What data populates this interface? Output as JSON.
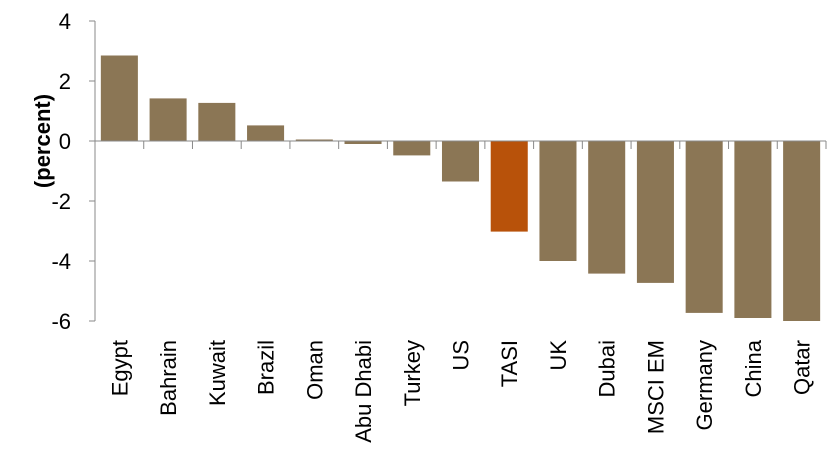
{
  "chart_data": {
    "type": "bar",
    "title": "",
    "xlabel": "",
    "ylabel": "(percent)",
    "ylim": [
      -6,
      4
    ],
    "yticks": [
      4,
      2,
      0,
      -2,
      -4,
      -6
    ],
    "ytick_labels": [
      "4",
      "2",
      "0",
      "-2",
      "-4",
      "-6"
    ],
    "grid": false,
    "legend": "none",
    "categories": [
      "Egypt",
      "Bahrain",
      "Kuwait",
      "Brazil",
      "Oman",
      "Abu Dhabi",
      "Turkey",
      "US",
      "TASI",
      "UK",
      "Dubai",
      "MSCI EM",
      "Germany",
      "China",
      "Qatar"
    ],
    "values": [
      2.85,
      1.42,
      1.27,
      0.52,
      0.05,
      -0.1,
      -0.48,
      -1.35,
      -3.02,
      -4.0,
      -4.42,
      -4.73,
      -5.73,
      -5.9,
      -6.0
    ],
    "colors": {
      "default": "#8B7655",
      "highlight": "#B8520A",
      "highlight_category": "TASI",
      "axis": "#888888"
    }
  }
}
